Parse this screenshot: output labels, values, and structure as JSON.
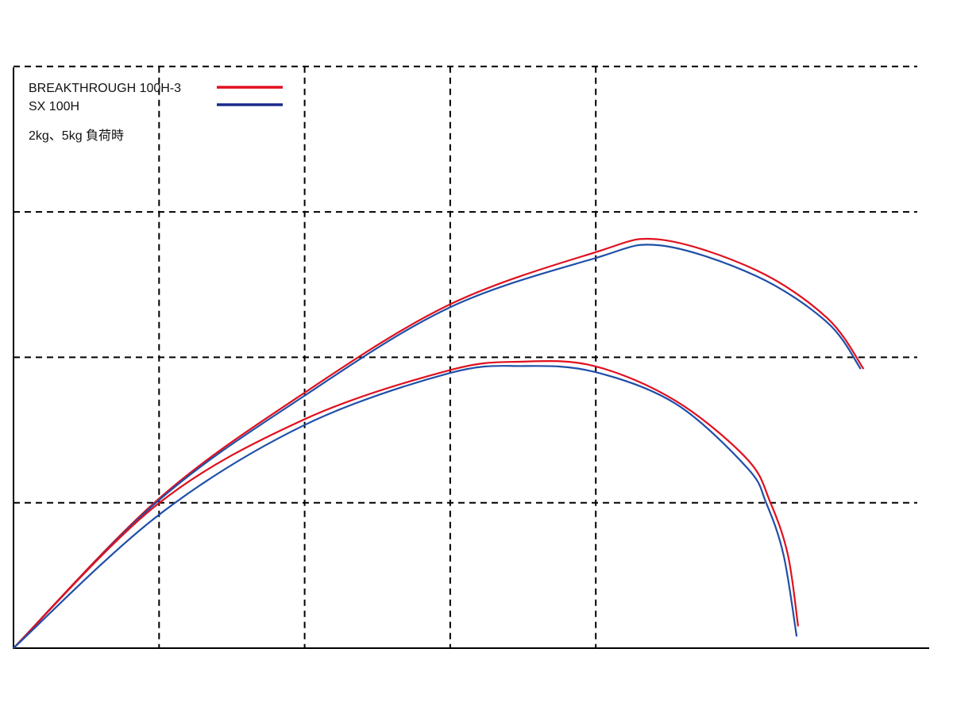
{
  "chart_data": {
    "type": "line",
    "title": "",
    "xlabel": "",
    "ylabel": "",
    "xlim": [
      0,
      6.3
    ],
    "ylim": [
      0,
      4
    ],
    "grid": true,
    "grid_style": "dashed",
    "legend_placement": "top-left",
    "legend": [
      {
        "label": "BREAKTHROUGH 100H-3",
        "color": "#e0101e"
      },
      {
        "label": "SX 100H",
        "color": "#1a2a8c"
      }
    ],
    "note": "2kg、5kg 負荷時",
    "series": [
      {
        "name": "BREAKTHROUGH 100H-3",
        "color": "#e0101e",
        "x": [
          0,
          0.99,
          1.99,
          2.99,
          3.99,
          4.44,
          5.1,
          5.59,
          5.84
        ],
        "y": [
          0,
          1.02,
          1.75,
          2.36,
          2.72,
          2.81,
          2.6,
          2.27,
          1.92
        ]
      },
      {
        "name": "SX 100H",
        "color": "#1f4fa8",
        "x": [
          0,
          0.99,
          1.99,
          2.99,
          3.99,
          4.44,
          5.1,
          5.59,
          5.82
        ],
        "y": [
          0,
          1.01,
          1.73,
          2.34,
          2.68,
          2.77,
          2.56,
          2.24,
          1.92
        ]
      },
      {
        "name": "BREAKTHROUGH 100H-3",
        "color": "#e0101e",
        "x": [
          0,
          0.99,
          1.99,
          2.99,
          3.49,
          3.99,
          4.55,
          5.04,
          5.2,
          5.32,
          5.39
        ],
        "y": [
          0,
          0.99,
          1.57,
          1.91,
          1.97,
          1.94,
          1.7,
          1.3,
          1.0,
          0.64,
          0.15
        ]
      },
      {
        "name": "SX 100H",
        "color": "#1f4fa8",
        "x": [
          0,
          0.99,
          1.99,
          2.99,
          3.51,
          3.99,
          4.55,
          5.04,
          5.17,
          5.29,
          5.38
        ],
        "y": [
          0,
          0.91,
          1.53,
          1.89,
          1.94,
          1.9,
          1.68,
          1.24,
          1.0,
          0.64,
          0.08
        ]
      }
    ]
  }
}
